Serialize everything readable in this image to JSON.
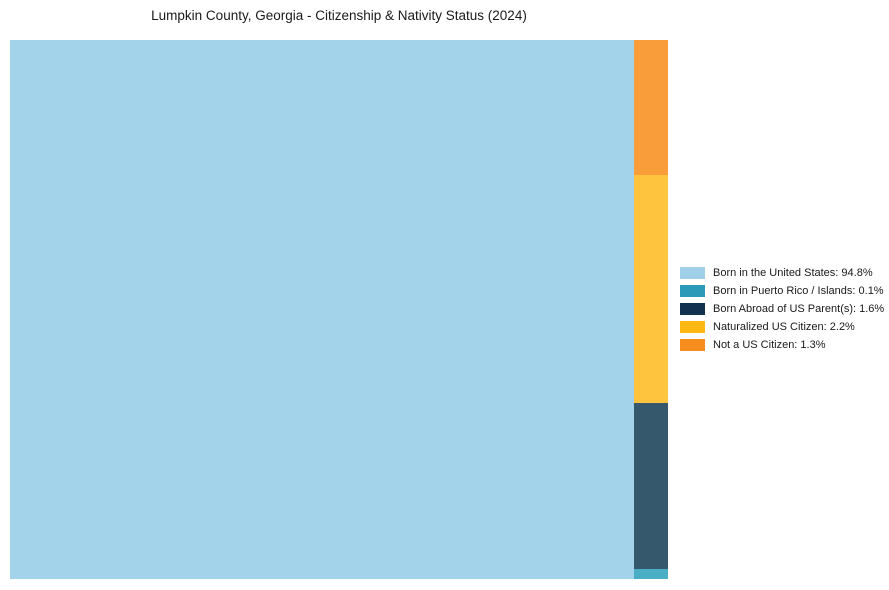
{
  "title": "Lumpkin County, Georgia - Citizenship & Nativity Status (2024)",
  "colors": {
    "background": "#ffffff",
    "title_text": "#1a1a1a",
    "legend_text": "#1a1a1a"
  },
  "chart_data": {
    "type": "treemap",
    "title": "Lumpkin County, Georgia - Citizenship & Nativity Status (2024)",
    "unit": "%",
    "legend_position": "right-center",
    "grid": false,
    "categories": [
      "Born in the United States",
      "Born in Puerto Rico / Islands",
      "Born Abroad of US Parent(s)",
      "Naturalized US Citizen",
      "Not a US Citizen"
    ],
    "values": [
      94.8,
      0.1,
      1.6,
      2.2,
      1.3
    ],
    "legend_labels": [
      "Born in the United States: 94.8%",
      "Born in Puerto Rico / Islands: 0.1%",
      "Born Abroad of US Parent(s): 1.6%",
      "Naturalized US Citizen: 2.2%",
      "Not a US Citizen: 1.3%"
    ],
    "swatch_colors": [
      "#9fd0e8",
      "#2a9ab8",
      "#123250",
      "#fdb813",
      "#f78d1e"
    ],
    "rect_colors": [
      "#a3d3ea",
      "#4aaec5",
      "#36586c",
      "#fec43e",
      "#f99d3b"
    ],
    "layout": {
      "main_index": 0,
      "column_order_top_to_bottom": [
        4,
        3,
        2,
        1
      ]
    }
  }
}
